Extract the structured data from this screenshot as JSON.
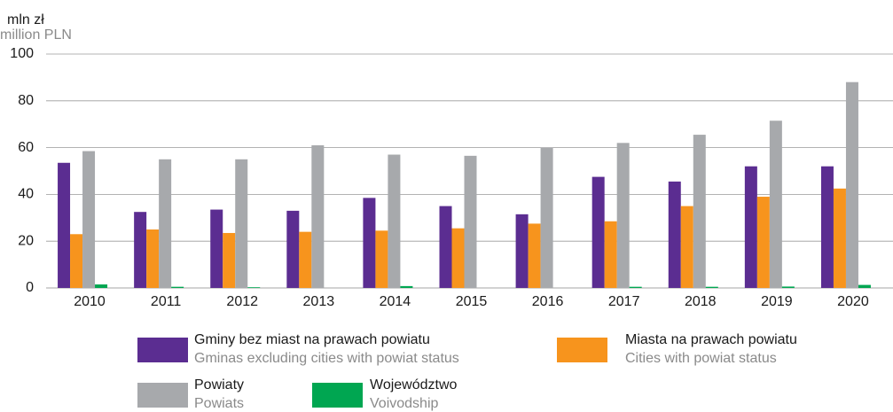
{
  "chart_data": {
    "type": "bar",
    "y_label": "mln zł",
    "y_label_en": "million PLN",
    "categories": [
      "2010",
      "2011",
      "2012",
      "2013",
      "2014",
      "2015",
      "2016",
      "2017",
      "2018",
      "2019",
      "2020"
    ],
    "series": [
      {
        "name": "Gminy bez miast na prawach powiatu",
        "name_en": "Gminas excluding cities with powiat status",
        "color": "#5b2d91",
        "values": [
          53.5,
          32.5,
          33.5,
          33,
          38.5,
          35,
          31.5,
          47.5,
          45.5,
          52,
          52
        ]
      },
      {
        "name": "Miasta na prawach powiatu",
        "name_en": "Cities with powiat status",
        "color": "#f7941d",
        "values": [
          23,
          25,
          23.5,
          24,
          24.5,
          25.5,
          27.5,
          28.5,
          35,
          39,
          42.5
        ]
      },
      {
        "name": "Powiaty",
        "name_en": "Powiats",
        "color": "#a7a9ac",
        "values": [
          58.5,
          55,
          55,
          61,
          57,
          56.5,
          60,
          62,
          65.5,
          71.5,
          88
        ]
      },
      {
        "name": "Województwo",
        "name_en": "Voivodship",
        "color": "#00a651",
        "values": [
          1.5,
          0.5,
          0.3,
          0,
          0.8,
          0,
          0,
          0.5,
          0.5,
          0.6,
          1.3
        ]
      }
    ],
    "ylim": [
      0,
      100
    ],
    "yticks": [
      0,
      20,
      40,
      60,
      80,
      100
    ],
    "grid": true
  }
}
